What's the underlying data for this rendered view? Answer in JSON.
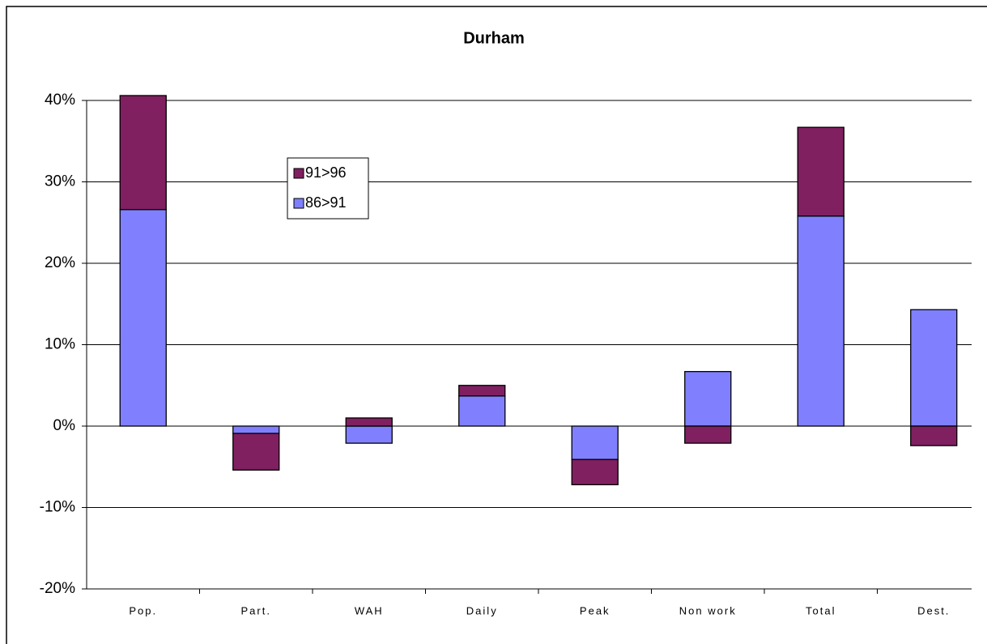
{
  "chart_data": {
    "type": "bar",
    "stacked": true,
    "title": "Durham",
    "categories": [
      "Pop.",
      "Part.",
      "WAH",
      "Daily",
      "Peak",
      "Non work",
      "Total",
      "Dest."
    ],
    "series": [
      {
        "name": "86>91",
        "color": "#8080ff",
        "values": [
          26.6,
          -0.9,
          -2.1,
          3.7,
          -4.1,
          6.7,
          25.8,
          14.3
        ]
      },
      {
        "name": "91>96",
        "color": "#802060",
        "values": [
          14,
          -4.5,
          1.0,
          1.3,
          -3.1,
          -2.1,
          10.9,
          -2.4
        ]
      }
    ],
    "ylim": [
      -20,
      40
    ],
    "yticks": [
      {
        "value": -20,
        "label": "-20%"
      },
      {
        "value": -10,
        "label": "-10%"
      },
      {
        "value": 0,
        "label": "0%"
      },
      {
        "value": 10,
        "label": "10%"
      },
      {
        "value": 20,
        "label": "20%"
      },
      {
        "value": 30,
        "label": "30%"
      },
      {
        "value": 40,
        "label": "40%"
      }
    ],
    "grid": true,
    "legend": "upper left"
  }
}
